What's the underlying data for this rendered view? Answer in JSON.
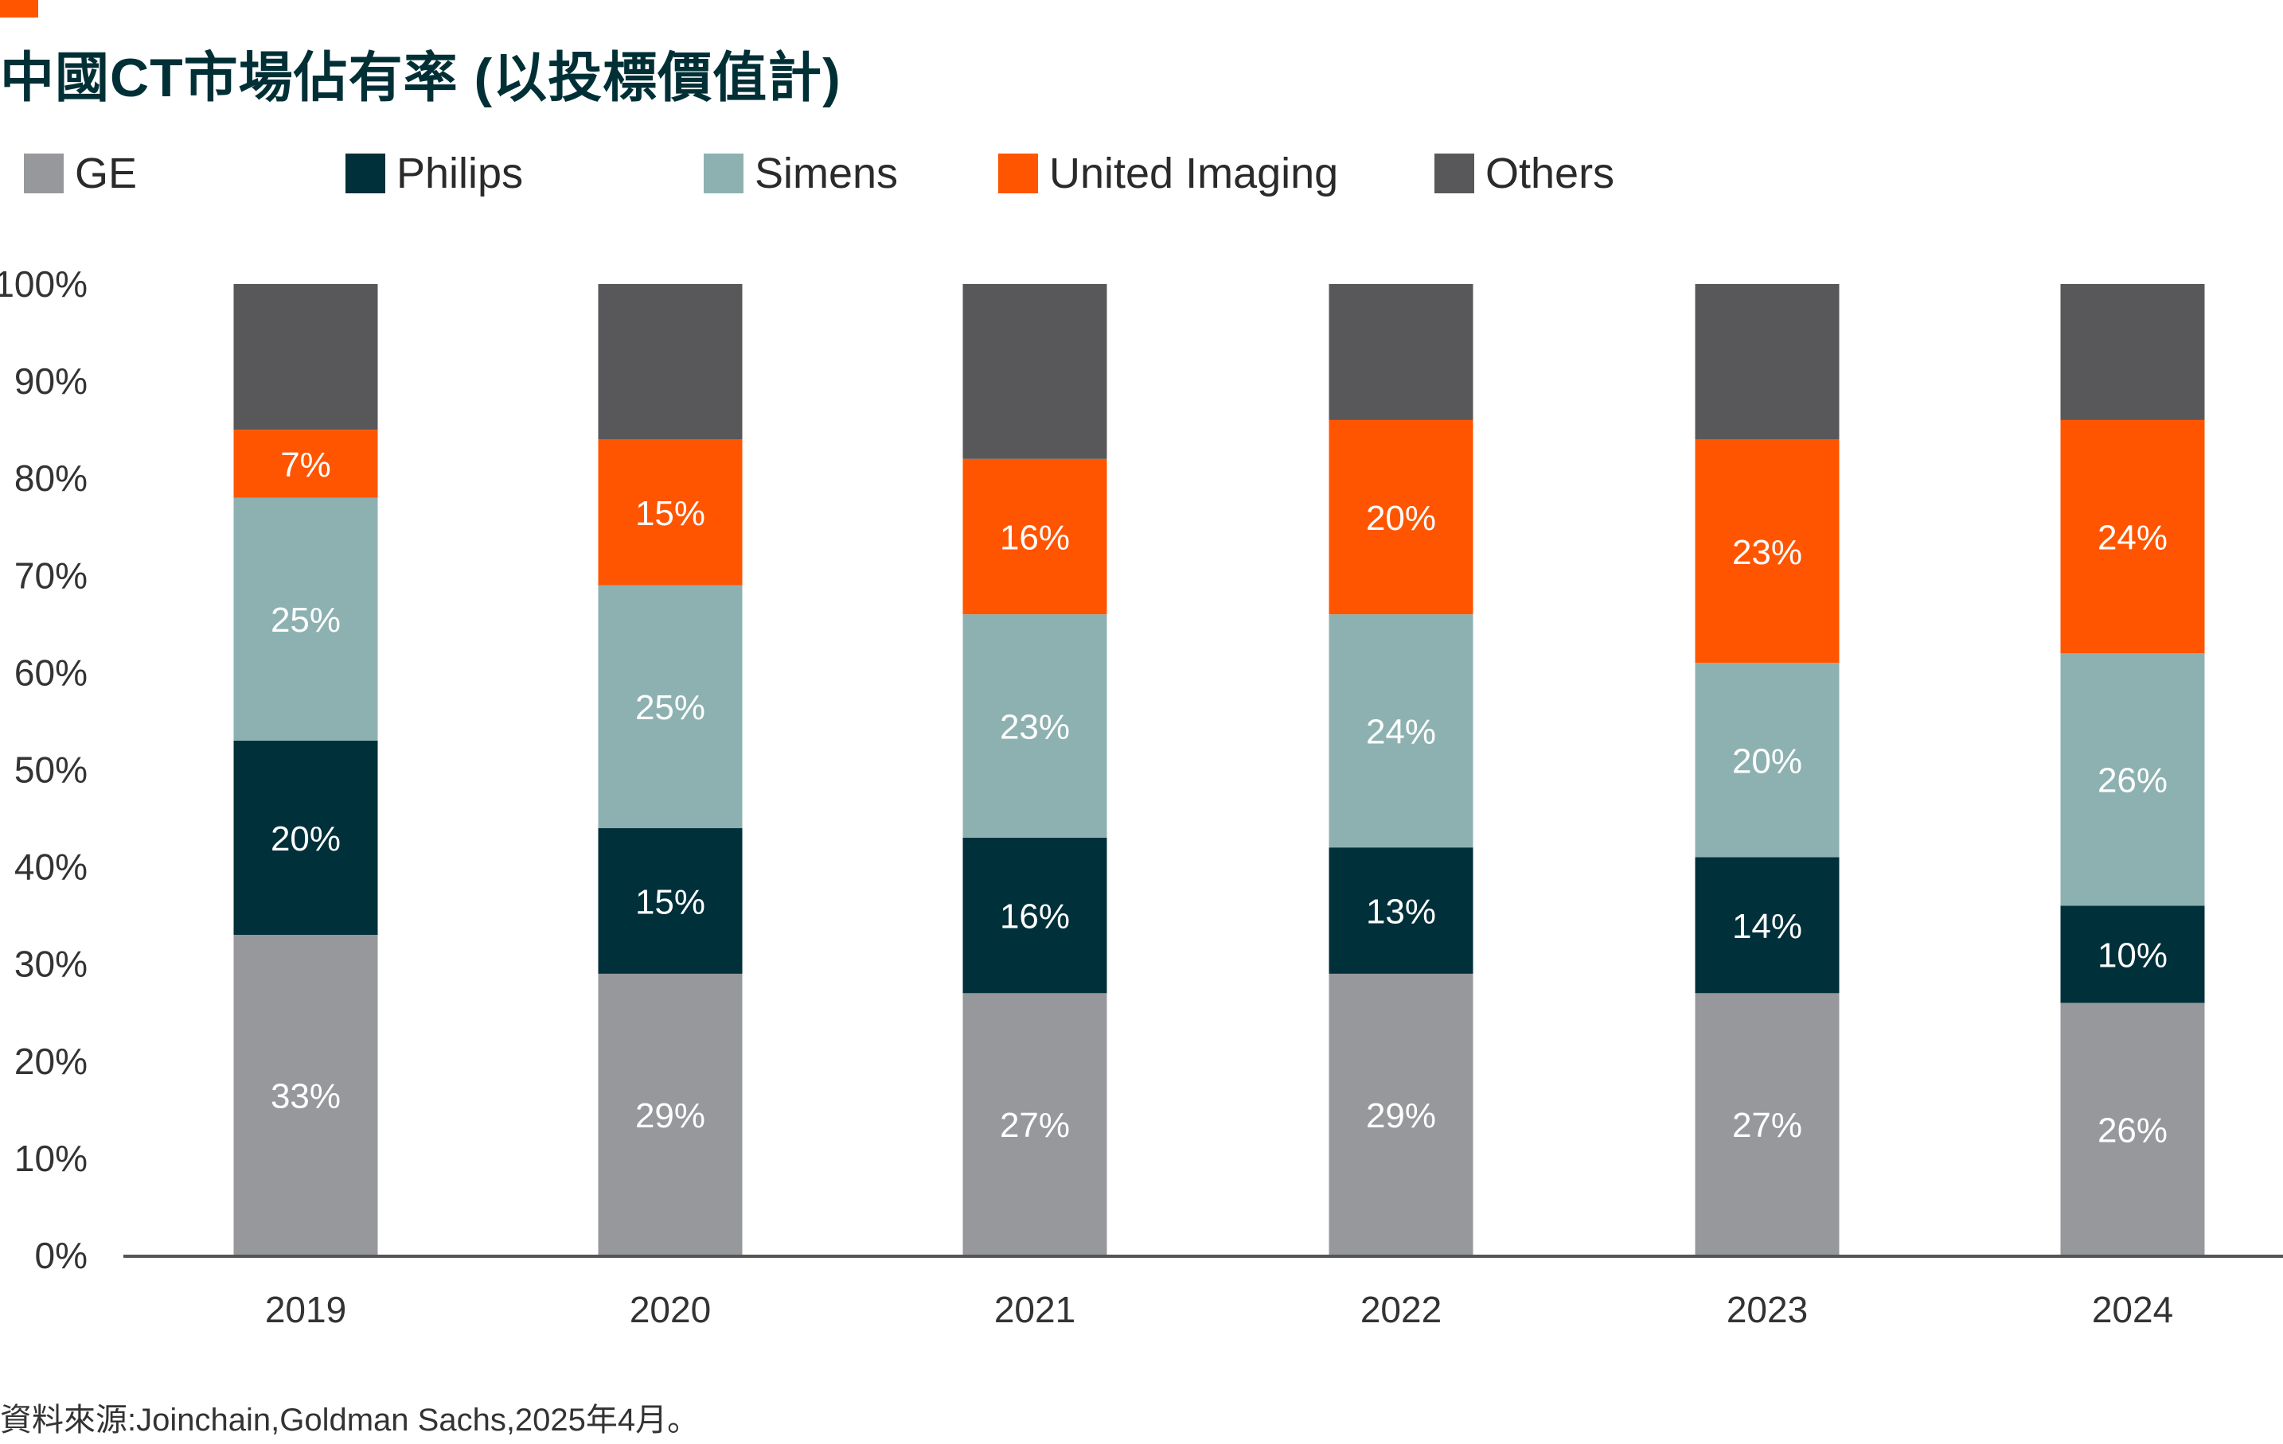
{
  "title": "中國CT市場佔有率 (以投標價值計)",
  "source": "資料來源:Joinchain,Goldman Sachs,2025年4月。",
  "colors": {
    "accent": "#ff5500",
    "axis": "#555555",
    "tick_text": "#333333",
    "label_text": "#ffffff"
  },
  "chart_data": {
    "type": "bar",
    "stacked": true,
    "categories": [
      "2019",
      "2020",
      "2021",
      "2022",
      "2023",
      "2024"
    ],
    "series": [
      {
        "name": "GE",
        "color": "#97989c",
        "values": [
          33,
          29,
          27,
          29,
          27,
          26
        ]
      },
      {
        "name": "Philips",
        "color": "#00303a",
        "values": [
          20,
          15,
          16,
          13,
          14,
          10
        ]
      },
      {
        "name": "Simens",
        "color": "#8db1b1",
        "values": [
          25,
          25,
          23,
          24,
          20,
          26
        ]
      },
      {
        "name": "United Imaging",
        "color": "#ff5500",
        "values": [
          7,
          15,
          16,
          20,
          23,
          24
        ]
      },
      {
        "name": "Others",
        "color": "#58585a",
        "values": [
          15,
          16,
          18,
          14,
          16,
          14
        ]
      }
    ],
    "data_labels": {
      "GE": [
        "33%",
        "29%",
        "27%",
        "29%",
        "27%",
        "26%"
      ],
      "Philips": [
        "20%",
        "15%",
        "16%",
        "13%",
        "14%",
        "10%"
      ],
      "Simens": [
        "25%",
        "25%",
        "23%",
        "24%",
        "20%",
        "26%"
      ],
      "United Imaging": [
        "7%",
        "15%",
        "16%",
        "20%",
        "23%",
        "24%"
      ]
    },
    "ylim": [
      0,
      100
    ],
    "yticks": [
      "0%",
      "10%",
      "20%",
      "30%",
      "40%",
      "50%",
      "60%",
      "70%",
      "80%",
      "90%",
      "100%"
    ],
    "legend_position": "top",
    "grid": false
  }
}
